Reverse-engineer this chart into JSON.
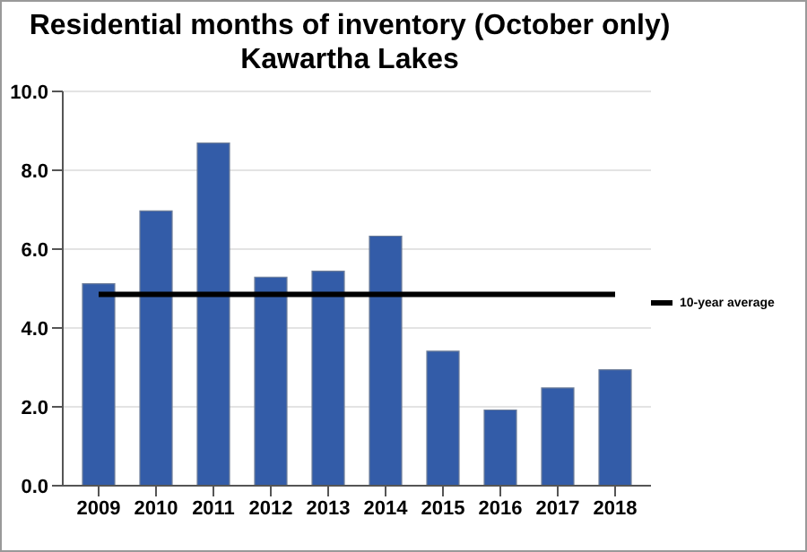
{
  "chart_data": {
    "type": "bar",
    "title": "Residential months of inventory (October only)",
    "subtitle": "Kawartha Lakes",
    "categories": [
      "2009",
      "2010",
      "2011",
      "2012",
      "2013",
      "2014",
      "2015",
      "2016",
      "2017",
      "2018"
    ],
    "series": [
      {
        "color": "#335ca8",
        "values": [
          5.12,
          6.97,
          8.69,
          5.29,
          5.44,
          6.33,
          3.41,
          1.92,
          2.48,
          2.94
        ]
      },
      {
        "type": "line",
        "name": "10-year average",
        "color": "#000000",
        "values": [
          4.85,
          4.85,
          4.85,
          4.85,
          4.85,
          4.85,
          4.85,
          4.85,
          4.85,
          4.85
        ]
      }
    ],
    "ylim": [
      0,
      10
    ],
    "yticks": [
      {
        "value": 0,
        "label": "0.0"
      },
      {
        "value": 2,
        "label": "2.0"
      },
      {
        "value": 4,
        "label": "4.0"
      },
      {
        "value": 6,
        "label": "6.0"
      },
      {
        "value": 8,
        "label": "8.0"
      },
      {
        "value": 10,
        "label": "10.0"
      }
    ],
    "grid": "y",
    "legend": "right",
    "marker": "none"
  }
}
